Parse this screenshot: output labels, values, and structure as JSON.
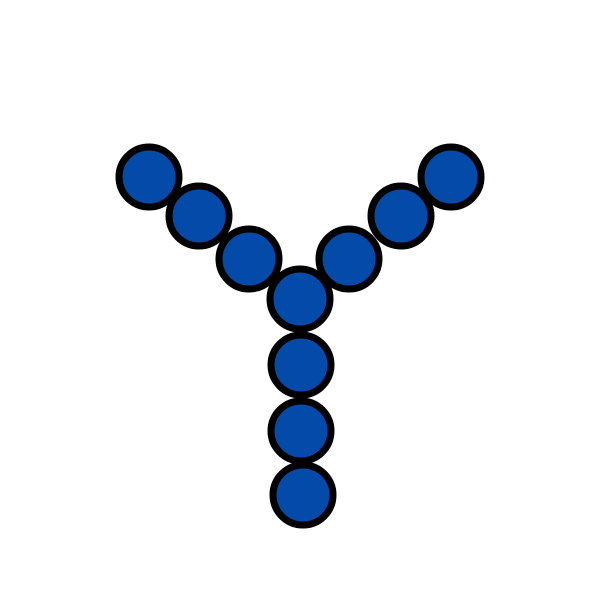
{
  "diagram": {
    "shape": "Y",
    "node_count": 10,
    "colors": {
      "background": "#ffffff",
      "node_fill": "#044aa8",
      "node_stroke": "#000000"
    },
    "branches": [
      {
        "id": "left-arm",
        "nodes": 3
      },
      {
        "id": "right-arm",
        "nodes": 3
      },
      {
        "id": "junction",
        "nodes": 1
      },
      {
        "id": "stem",
        "nodes": 3
      }
    ]
  }
}
